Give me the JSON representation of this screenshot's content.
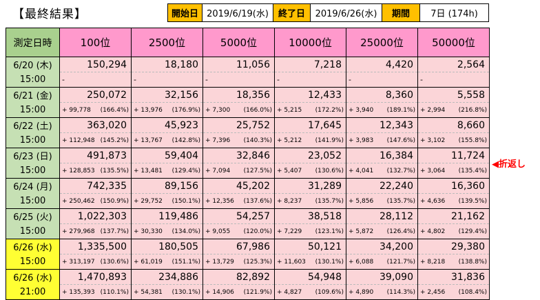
{
  "title": "【最終結果】",
  "header": {
    "start_label": "開始日",
    "start_value": "2019/6/19(水)",
    "end_label": "終了日",
    "end_value": "2019/6/26(水)",
    "period_label": "期間",
    "period_value": "7日 (174h)"
  },
  "columns": {
    "date": "測定日時",
    "ranks": [
      "100位",
      "2500位",
      "5000位",
      "10000位",
      "25000位",
      "50000位"
    ]
  },
  "rows": [
    {
      "date": "6/20 (木)",
      "time": "15:00",
      "highlight": false,
      "values": [
        "150,294",
        "18,180",
        "11,056",
        "7,218",
        "4,420",
        "2,564"
      ],
      "diffs": [
        {
          "inc": "-",
          "pct": ""
        },
        {
          "inc": "-",
          "pct": ""
        },
        {
          "inc": "-",
          "pct": ""
        },
        {
          "inc": "-",
          "pct": ""
        },
        {
          "inc": "-",
          "pct": ""
        },
        {
          "inc": "-",
          "pct": ""
        }
      ]
    },
    {
      "date": "6/21 (金)",
      "time": "15:00",
      "highlight": false,
      "values": [
        "250,072",
        "32,156",
        "18,356",
        "12,433",
        "8,360",
        "5,558"
      ],
      "diffs": [
        {
          "inc": "+ 99,778",
          "pct": "(166.4%)"
        },
        {
          "inc": "+ 13,976",
          "pct": "(176.9%)"
        },
        {
          "inc": "+ 7,300",
          "pct": "(166.0%)"
        },
        {
          "inc": "+ 5,215",
          "pct": "(172.2%)"
        },
        {
          "inc": "+ 3,940",
          "pct": "(189.1%)"
        },
        {
          "inc": "+ 2,994",
          "pct": "(216.8%)"
        }
      ]
    },
    {
      "date": "6/22 (土)",
      "time": "15:00",
      "highlight": false,
      "values": [
        "363,020",
        "45,923",
        "25,752",
        "17,645",
        "12,343",
        "8,660"
      ],
      "diffs": [
        {
          "inc": "+ 112,948",
          "pct": "(145.2%)"
        },
        {
          "inc": "+ 13,767",
          "pct": "(142.8%)"
        },
        {
          "inc": "+ 7,396",
          "pct": "(140.3%)"
        },
        {
          "inc": "+ 5,212",
          "pct": "(141.9%)"
        },
        {
          "inc": "+ 3,983",
          "pct": "(147.6%)"
        },
        {
          "inc": "+ 3,102",
          "pct": "(155.8%)"
        }
      ]
    },
    {
      "date": "6/23 (日)",
      "time": "15:00",
      "highlight": false,
      "values": [
        "491,873",
        "59,404",
        "32,846",
        "23,052",
        "16,384",
        "11,724"
      ],
      "diffs": [
        {
          "inc": "+ 128,853",
          "pct": "(135.5%)"
        },
        {
          "inc": "+ 13,481",
          "pct": "(129.4%)"
        },
        {
          "inc": "+ 7,094",
          "pct": "(127.5%)"
        },
        {
          "inc": "+ 5,407",
          "pct": "(130.6%)"
        },
        {
          "inc": "+ 4,041",
          "pct": "(132.7%)"
        },
        {
          "inc": "+ 3,064",
          "pct": "(135.4%)"
        }
      ]
    },
    {
      "date": "6/24 (月)",
      "time": "15:00",
      "highlight": false,
      "values": [
        "742,335",
        "89,156",
        "45,202",
        "31,289",
        "22,240",
        "16,360"
      ],
      "diffs": [
        {
          "inc": "+ 250,462",
          "pct": "(150.9%)"
        },
        {
          "inc": "+ 29,752",
          "pct": "(150.1%)"
        },
        {
          "inc": "+ 12,356",
          "pct": "(137.6%)"
        },
        {
          "inc": "+ 8,237",
          "pct": "(135.7%)"
        },
        {
          "inc": "+ 5,856",
          "pct": "(135.7%)"
        },
        {
          "inc": "+ 4,636",
          "pct": "(139.5%)"
        }
      ]
    },
    {
      "date": "6/25 (火)",
      "time": "15:00",
      "highlight": false,
      "values": [
        "1,022,303",
        "119,486",
        "54,257",
        "38,518",
        "28,112",
        "21,162"
      ],
      "diffs": [
        {
          "inc": "+ 279,968",
          "pct": "(137.7%)"
        },
        {
          "inc": "+ 30,330",
          "pct": "(134.0%)"
        },
        {
          "inc": "+ 9,055",
          "pct": "(120.0%)"
        },
        {
          "inc": "+ 7,229",
          "pct": "(123.1%)"
        },
        {
          "inc": "+ 5,872",
          "pct": "(126.4%)"
        },
        {
          "inc": "+ 4,802",
          "pct": "(129.4%)"
        }
      ]
    },
    {
      "date": "6/26 (水)",
      "time": "15:00",
      "highlight": true,
      "values": [
        "1,335,500",
        "180,505",
        "67,986",
        "50,121",
        "34,200",
        "29,380"
      ],
      "diffs": [
        {
          "inc": "+ 313,197",
          "pct": "(130.6%)"
        },
        {
          "inc": "+ 61,019",
          "pct": "(151.1%)"
        },
        {
          "inc": "+ 13,729",
          "pct": "(125.3%)"
        },
        {
          "inc": "+ 11,603",
          "pct": "(130.1%)"
        },
        {
          "inc": "+ 6,088",
          "pct": "(121.7%)"
        },
        {
          "inc": "+ 8,218",
          "pct": "(138.8%)"
        }
      ]
    },
    {
      "date": "6/26 (水)",
      "time": "21:00",
      "highlight": true,
      "values": [
        "1,470,893",
        "234,886",
        "82,892",
        "54,948",
        "39,090",
        "31,836"
      ],
      "diffs": [
        {
          "inc": "+ 135,393",
          "pct": "(110.1%)"
        },
        {
          "inc": "+ 54,381",
          "pct": "(130.1%)"
        },
        {
          "inc": "+ 14,906",
          "pct": "(121.9%)"
        },
        {
          "inc": "+ 4,827",
          "pct": "(109.6%)"
        },
        {
          "inc": "+ 4,890",
          "pct": "(114.3%)"
        },
        {
          "inc": "+ 2,456",
          "pct": "(108.4%)"
        }
      ]
    }
  ],
  "note": "◀折返し"
}
